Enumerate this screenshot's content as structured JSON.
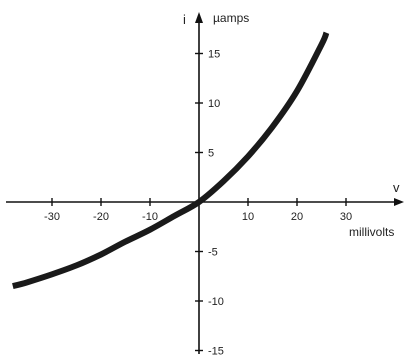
{
  "chart_data": {
    "type": "line",
    "title": "",
    "xlabel_symbol": "v",
    "xlabel_unit": "millivolts",
    "ylabel_symbol": "i",
    "ylabel_unit": "µamps",
    "xlim": [
      -39,
      42
    ],
    "ylim": [
      -16,
      18
    ],
    "x_ticks": [
      -30,
      -20,
      -10,
      10,
      20,
      30
    ],
    "x_tick_labels": [
      "-30",
      "-20",
      "-10",
      "10",
      "20",
      "30"
    ],
    "y_ticks": [
      -15,
      -10,
      -5,
      5,
      10,
      15
    ],
    "y_tick_labels": [
      "-15",
      "-10",
      "-5",
      "5",
      "10",
      "15"
    ],
    "grid": false,
    "legend": "none",
    "series": [
      {
        "x": [
          -38,
          -35,
          -30,
          -25,
          -20,
          -15,
          -10,
          -5,
          0,
          5,
          10,
          15,
          20,
          25,
          26
        ],
        "y": [
          -8.5,
          -8.1,
          -7.3,
          -6.4,
          -5.3,
          -4.0,
          -2.8,
          -1.4,
          0,
          2.1,
          4.6,
          7.6,
          11.2,
          15.9,
          17.1
        ]
      }
    ],
    "colors": {
      "curve": "#1a1a1a",
      "axis": "#111111"
    }
  }
}
